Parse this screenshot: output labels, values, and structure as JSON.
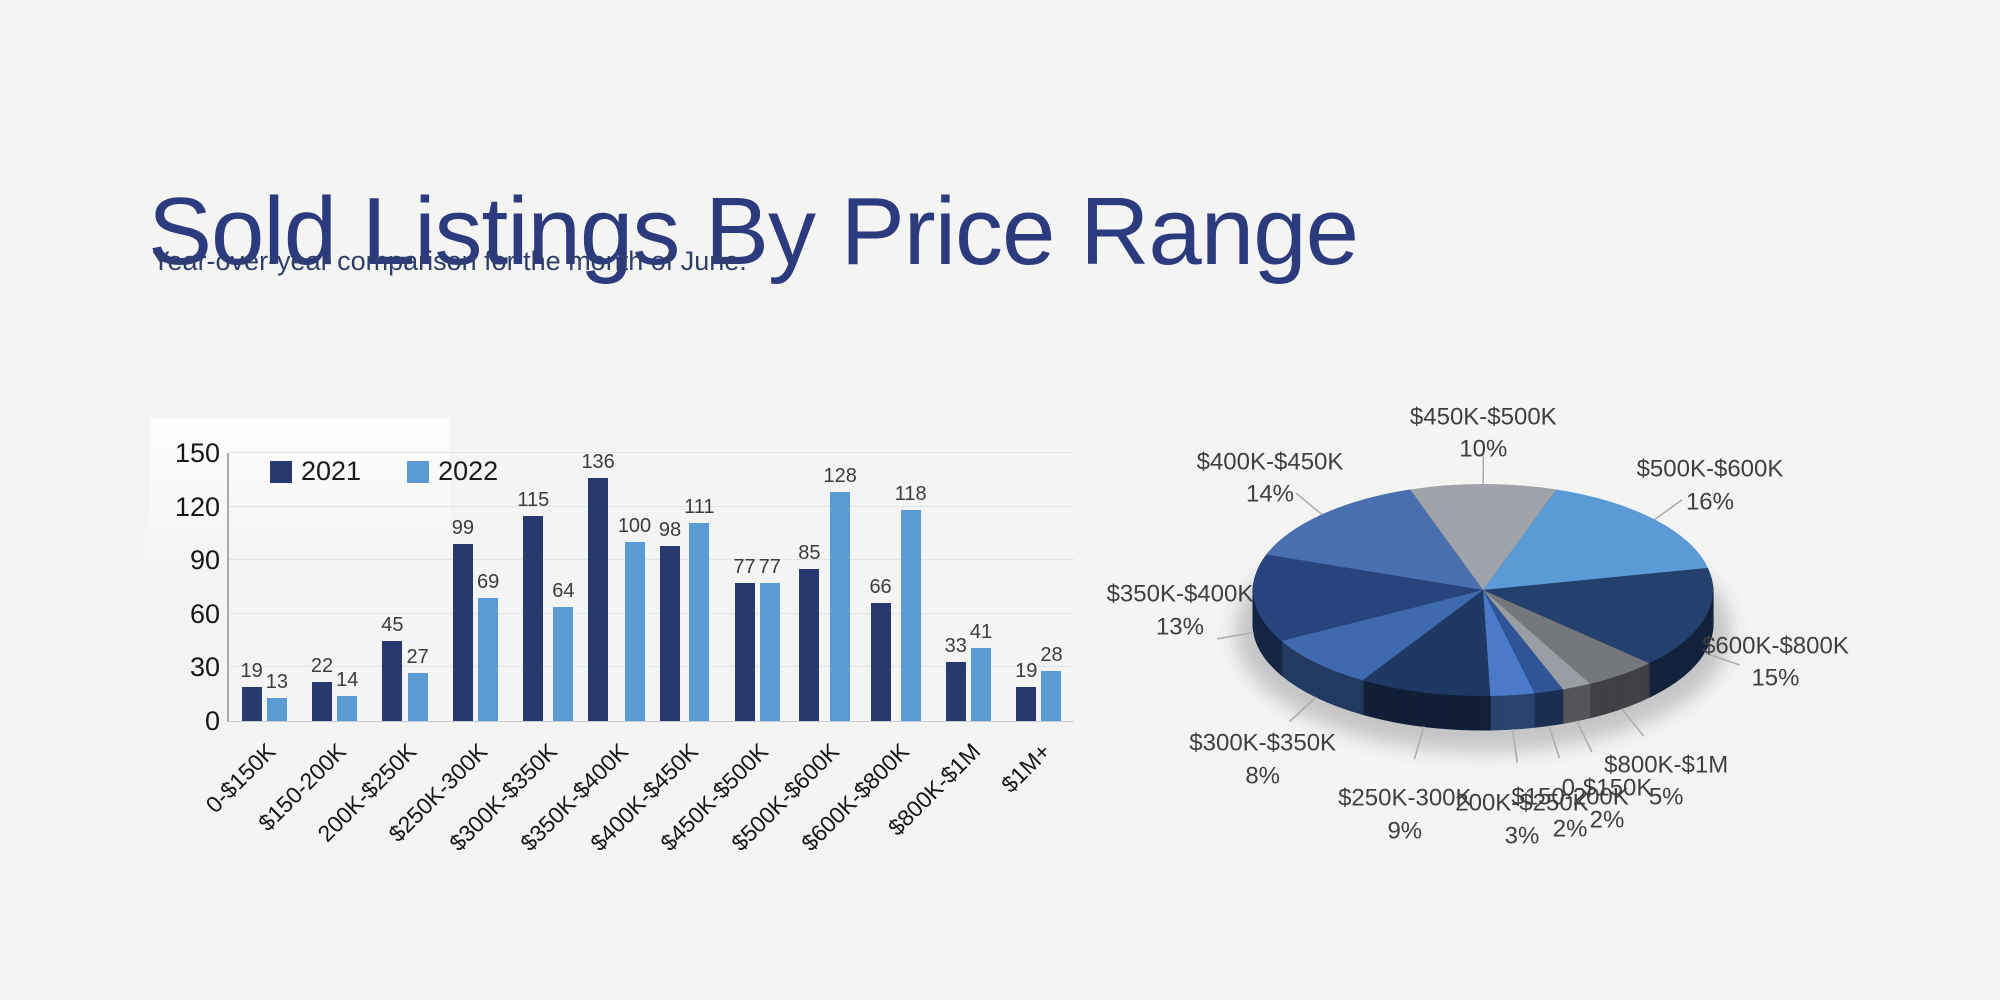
{
  "page": {
    "title": "Sold Listings By Price Range",
    "subtitle": "Year-over-year comparison for the month of June."
  },
  "colors": {
    "background": "#f4f4f2",
    "title": "#2c3a7e",
    "subtitle": "#2f3f6a",
    "grid": "#e0e3e9",
    "axis": "#a8abb1",
    "value_label": "#3c3c3c",
    "series_2021": "#27396e",
    "series_2022": "#5b9bd5"
  },
  "chart_data": [
    {
      "type": "bar",
      "title": "",
      "xlabel": "",
      "ylabel": "",
      "ylim": [
        0,
        150
      ],
      "yticks": [
        0,
        30,
        60,
        90,
        120,
        150
      ],
      "grid": true,
      "legend_position": "top-left",
      "categories": [
        "0-$150K",
        "$150-200K",
        "200K-$250K",
        "$250K-300K",
        "$300K-$350K",
        "$350K-$400K",
        "$400K-$450K",
        "$450K-$500K",
        "$500K-$600K",
        "$600K-$800K",
        "$800K-$1M",
        "$1M+"
      ],
      "series": [
        {
          "name": "2021",
          "color": "#27396e",
          "values": [
            19,
            22,
            45,
            99,
            115,
            136,
            98,
            77,
            85,
            66,
            33,
            19
          ]
        },
        {
          "name": "2022",
          "color": "#5b9bd5",
          "values": [
            13,
            14,
            27,
            69,
            64,
            100,
            111,
            77,
            128,
            118,
            41,
            28
          ]
        }
      ]
    },
    {
      "type": "pie",
      "style": "3d",
      "start_angle_deg": -108.5,
      "slices": [
        {
          "label": "$450K-$500K",
          "pct": 10,
          "color": "#a0a3a9"
        },
        {
          "label": "$500K-$600K",
          "pct": 16,
          "color": "#5b9bd5"
        },
        {
          "label": "$600K-$800K",
          "pct": 15,
          "color": "#24406e"
        },
        {
          "label": "$800K-$1M",
          "pct": 5,
          "color": "#74777c"
        },
        {
          "label": "0-$150K",
          "pct": 2,
          "color": "#9a9da3"
        },
        {
          "label": "$150-200K",
          "pct": 2,
          "color": "#2f5597"
        },
        {
          "label": "200K-$250K",
          "pct": 3,
          "color": "#4b7bc8"
        },
        {
          "label": "$250K-300K",
          "pct": 9,
          "color": "#1f3864"
        },
        {
          "label": "$300K-$350K",
          "pct": 8,
          "color": "#3f6ab0"
        },
        {
          "label": "$350K-$400K",
          "pct": 13,
          "color": "#27447c"
        },
        {
          "label": "$400K-$450K",
          "pct": 14,
          "color": "#4a6fae"
        }
      ]
    }
  ]
}
